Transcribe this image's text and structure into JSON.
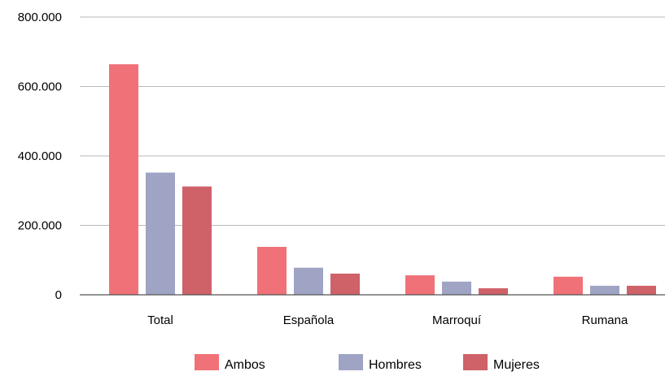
{
  "chart_data": {
    "type": "bar",
    "categories": [
      "Total",
      "Española",
      "Marroquí",
      "Rumana"
    ],
    "series": [
      {
        "name": "Ambos",
        "color": "#f07178",
        "values": [
          664000,
          138000,
          56000,
          52000
        ]
      },
      {
        "name": "Hombres",
        "color": "#9fa3c4",
        "values": [
          352000,
          78000,
          38000,
          26000
        ]
      },
      {
        "name": "Mujeres",
        "color": "#cf6168",
        "values": [
          312000,
          61000,
          19000,
          26000
        ]
      }
    ],
    "yticks": [
      "0",
      "200.000",
      "400.000",
      "600.000",
      "800.000"
    ],
    "ytick_values": [
      0,
      200000,
      400000,
      600000,
      800000
    ],
    "ylim": [
      0,
      800000
    ],
    "grid": true,
    "legend": "bottom"
  }
}
